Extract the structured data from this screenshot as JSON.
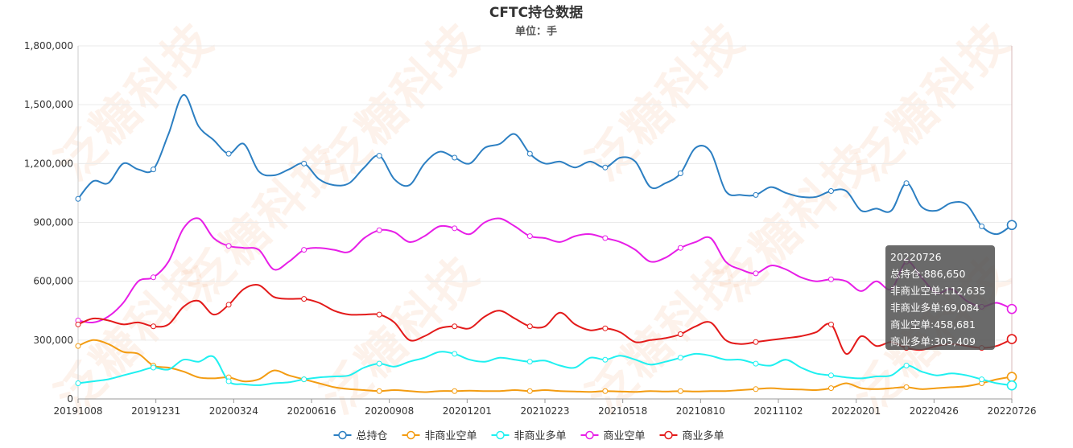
{
  "watermark_text": "泛糖科技",
  "chart_data": {
    "type": "line",
    "title": "CFTC持仓数据",
    "subtitle": "单位：手",
    "xlabel": "",
    "ylabel": "",
    "ylim": [
      0,
      1800000
    ],
    "yticks": [
      "0",
      "300,000",
      "600,000",
      "900,000",
      "1,200,000",
      "1,500,000",
      "1,800,000"
    ],
    "xticks": [
      "20191008",
      "20191231",
      "20200324",
      "20200616",
      "20200908",
      "20201201",
      "20210223",
      "20210518",
      "20210810",
      "20211102",
      "20220201",
      "20220426",
      "20220726"
    ],
    "grid": true,
    "legend_position": "bottom",
    "series": [
      {
        "name": "总持仓",
        "color": "#2c7fc2",
        "values": [
          1020000,
          1110000,
          1100000,
          1200000,
          1170000,
          1170000,
          1350000,
          1550000,
          1390000,
          1320000,
          1250000,
          1300000,
          1160000,
          1140000,
          1170000,
          1200000,
          1120000,
          1090000,
          1100000,
          1180000,
          1240000,
          1120000,
          1090000,
          1200000,
          1260000,
          1230000,
          1200000,
          1280000,
          1300000,
          1350000,
          1250000,
          1200000,
          1210000,
          1180000,
          1210000,
          1180000,
          1230000,
          1210000,
          1080000,
          1100000,
          1150000,
          1280000,
          1260000,
          1060000,
          1040000,
          1040000,
          1080000,
          1050000,
          1030000,
          1030000,
          1060000,
          1060000,
          960000,
          970000,
          960000,
          1100000,
          980000,
          960000,
          1000000,
          990000,
          880000,
          840000,
          886650
        ]
      },
      {
        "name": "非商业空单",
        "color": "#f39c12",
        "values": [
          270000,
          300000,
          280000,
          240000,
          230000,
          170000,
          160000,
          140000,
          110000,
          105000,
          110000,
          90000,
          100000,
          145000,
          120000,
          100000,
          80000,
          60000,
          50000,
          45000,
          40000,
          45000,
          40000,
          35000,
          40000,
          40000,
          42000,
          40000,
          40000,
          45000,
          40000,
          45000,
          40000,
          38000,
          36000,
          40000,
          38000,
          36000,
          40000,
          38000,
          40000,
          38000,
          40000,
          40000,
          45000,
          50000,
          55000,
          50000,
          48000,
          45000,
          55000,
          80000,
          55000,
          50000,
          55000,
          60000,
          50000,
          55000,
          60000,
          65000,
          80000,
          100000,
          112635
        ]
      },
      {
        "name": "非商业多单",
        "color": "#1ff0f0",
        "values": [
          80000,
          90000,
          100000,
          120000,
          140000,
          160000,
          150000,
          200000,
          190000,
          215000,
          90000,
          75000,
          70000,
          80000,
          85000,
          100000,
          110000,
          115000,
          120000,
          160000,
          180000,
          165000,
          190000,
          210000,
          240000,
          230000,
          200000,
          190000,
          210000,
          200000,
          190000,
          195000,
          170000,
          160000,
          210000,
          200000,
          220000,
          200000,
          175000,
          190000,
          210000,
          230000,
          220000,
          200000,
          200000,
          180000,
          170000,
          200000,
          160000,
          130000,
          120000,
          110000,
          105000,
          115000,
          120000,
          170000,
          140000,
          120000,
          130000,
          120000,
          100000,
          80000,
          69084
        ]
      },
      {
        "name": "商业空单",
        "color": "#e71ee7",
        "values": [
          400000,
          390000,
          420000,
          490000,
          600000,
          620000,
          700000,
          870000,
          920000,
          820000,
          780000,
          770000,
          760000,
          660000,
          700000,
          760000,
          770000,
          760000,
          750000,
          820000,
          860000,
          850000,
          800000,
          830000,
          880000,
          870000,
          840000,
          900000,
          920000,
          880000,
          830000,
          820000,
          800000,
          830000,
          840000,
          820000,
          800000,
          760000,
          700000,
          720000,
          770000,
          800000,
          820000,
          700000,
          660000,
          640000,
          680000,
          660000,
          620000,
          600000,
          610000,
          600000,
          550000,
          600000,
          560000,
          700000,
          620000,
          540000,
          560000,
          500000,
          470000,
          490000,
          458681
        ]
      },
      {
        "name": "商业多单",
        "color": "#e31a1a",
        "values": [
          380000,
          410000,
          400000,
          380000,
          390000,
          370000,
          380000,
          470000,
          500000,
          430000,
          480000,
          560000,
          580000,
          520000,
          510000,
          510000,
          490000,
          450000,
          430000,
          430000,
          430000,
          390000,
          300000,
          320000,
          360000,
          370000,
          360000,
          420000,
          450000,
          410000,
          370000,
          370000,
          440000,
          380000,
          350000,
          360000,
          340000,
          290000,
          300000,
          310000,
          330000,
          370000,
          390000,
          300000,
          280000,
          290000,
          300000,
          310000,
          320000,
          340000,
          380000,
          230000,
          320000,
          270000,
          290000,
          260000,
          250000,
          270000,
          280000,
          270000,
          260000,
          270000,
          305409
        ]
      }
    ]
  },
  "tooltip": {
    "date": "20220726",
    "rows": [
      "总持仓:886,650",
      "非商业空单:112,635",
      "非商业多单:69,084",
      "商业空单:458,681",
      "商业多单:305,409"
    ]
  }
}
